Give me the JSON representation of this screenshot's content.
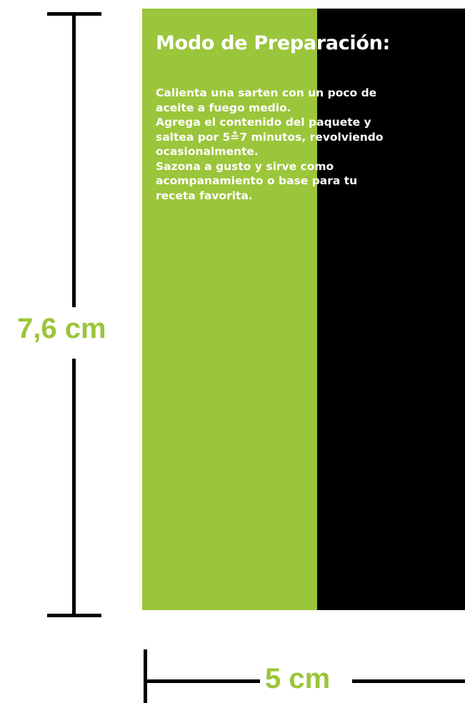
{
  "colors": {
    "green": "#9bc53a",
    "black": "#000000",
    "text_white": "#ffffff",
    "dimension_line": "#000000",
    "dimension_text": "#9bc53a"
  },
  "panel": {
    "title": "Modo de Preparación:",
    "body_lines": [
      "Calienta una sarten con un poco de",
      "aceite a fuego medio.",
      "Agrega el contenido del paquete y",
      "saltea por 5≛7 minutos, revolviendo",
      "ocasionalmente.",
      "Sazona a gusto y sirve como",
      "acompanamiento o base para tu",
      "receta favorita."
    ]
  },
  "dimensions": {
    "height_label": "7,6 cm",
    "width_label": "5 cm"
  }
}
